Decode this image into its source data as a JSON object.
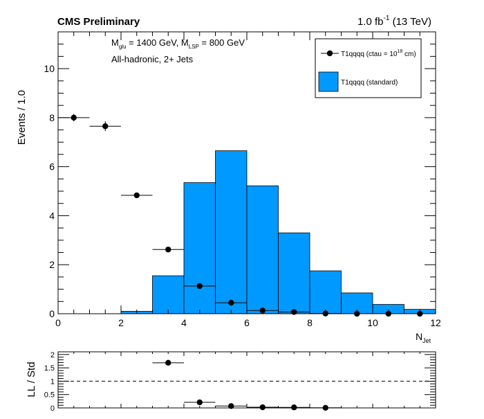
{
  "header": {
    "experiment": "CMS Preliminary",
    "lumi": "1.0 fb",
    "lumi_sup": "-1",
    "energy": " (13 TeV)"
  },
  "annotation": {
    "mass_prefix": "M",
    "mass_glu_sub": "glu",
    "mass_glu_value": " = 1400 GeV, M",
    "mass_lsp_sub": "LSP",
    "mass_lsp_value": " = 800 GeV",
    "selection": "All-hadronic, 2+ Jets"
  },
  "legend": {
    "points_label": "T1qqqq (ctau = 10",
    "points_label_sup": "18",
    "points_label_end": " cm)",
    "hist_label": "T1qqqq (standard)"
  },
  "colors": {
    "hist_fill": "#0099ff",
    "points": "#000000"
  },
  "chart_data": [
    {
      "type": "bar",
      "title": "",
      "xlabel": "N",
      "xlabel_sub": "Jet",
      "ylabel": "Events / 1.0",
      "xlim": [
        0,
        12
      ],
      "ylim": [
        0,
        11.5
      ],
      "xticks": [
        "0",
        "2",
        "4",
        "6",
        "8",
        "10",
        "12"
      ],
      "yticks": [
        "0",
        "2",
        "4",
        "6",
        "8",
        "10"
      ],
      "grid": false,
      "legend_position": "top-right",
      "bin_edges": [
        0,
        1,
        2,
        3,
        4,
        5,
        6,
        7,
        8,
        9,
        10,
        11,
        12
      ],
      "series": [
        {
          "name": "T1qqqq (standard)",
          "kind": "histogram",
          "values": [
            0,
            0,
            0.1,
            1.55,
            5.35,
            6.65,
            5.22,
            3.3,
            1.75,
            0.85,
            0.38,
            0.18
          ]
        },
        {
          "name": "T1qqqq (ctau = 10^18 cm)",
          "kind": "points",
          "x": [
            0.5,
            1.5,
            2.5,
            3.5,
            4.5,
            5.5,
            6.5,
            7.5,
            8.5,
            9.5,
            10.5,
            11.5
          ],
          "y": [
            8.0,
            7.65,
            4.83,
            2.62,
            1.13,
            0.45,
            0.13,
            0.07,
            0.01,
            0.0,
            0.0,
            0.0
          ],
          "yerr": [
            0.15,
            0.2,
            0.08,
            0.05,
            0.03,
            0.02,
            0.01,
            0.01,
            0.005,
            0.0,
            0.0,
            0.0
          ]
        }
      ]
    },
    {
      "type": "scatter",
      "title": "",
      "ylabel": "LL / Std",
      "xlim": [
        0,
        12
      ],
      "ylim": [
        0,
        2.1
      ],
      "yticks": [
        "0",
        "0.5",
        "1",
        "1.5",
        "2"
      ],
      "reference_line": 1,
      "grid": false,
      "series": [
        {
          "name": "",
          "x": [
            3.5,
            4.5,
            5.5,
            6.5,
            7.5,
            8.5
          ],
          "y": [
            1.69,
            0.21,
            0.07,
            0.025,
            0.02,
            0.005
          ]
        }
      ]
    }
  ]
}
